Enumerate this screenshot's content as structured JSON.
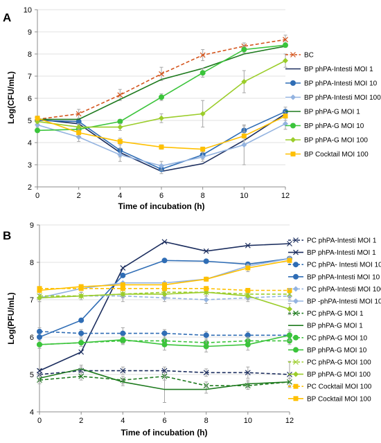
{
  "chart_data": [
    {
      "panel": "A",
      "type": "line",
      "xlabel": "Time of incubation (h)",
      "ylabel": "Log(CFU/mL)",
      "xlim": [
        0,
        12
      ],
      "ylim": [
        2,
        10
      ],
      "x_ticks": [
        "0",
        "2",
        "4",
        "6",
        "8",
        "10",
        "12"
      ],
      "y_ticks": [
        "2",
        "3",
        "4",
        "5",
        "6",
        "7",
        "8",
        "9",
        "10"
      ],
      "legend_position": "right",
      "x": [
        0,
        2,
        4,
        6,
        8,
        10,
        12
      ],
      "series": [
        {
          "name": "BC",
          "color": "#d4541c",
          "dash": "dashed",
          "marker": "x",
          "values": [
            5.05,
            5.3,
            6.15,
            7.1,
            7.95,
            8.35,
            8.65
          ],
          "error": [
            0.1,
            0.2,
            0.25,
            0.3,
            0.25,
            0.15,
            0.2
          ]
        },
        {
          "name": "BP phPA-Intesti MOI 1",
          "color": "#1b2d5e",
          "dash": "solid",
          "marker": "none",
          "values": [
            5.05,
            4.85,
            3.55,
            2.7,
            3.05,
            4.1,
            5.3
          ],
          "error": [
            0,
            0,
            0,
            0,
            0,
            0,
            0
          ]
        },
        {
          "name": "BP phPA-Intesti MOI 10",
          "color": "#2f6db5",
          "dash": "solid",
          "marker": "circle",
          "values": [
            5.0,
            4.95,
            3.65,
            2.8,
            3.45,
            4.55,
            5.4
          ],
          "error": [
            0.1,
            0.15,
            0.3,
            0.2,
            0.2,
            0.2,
            0.2
          ]
        },
        {
          "name": "BP phPA-Intesti MOI 100",
          "color": "#93b3e0",
          "dash": "solid",
          "marker": "diamond",
          "values": [
            4.8,
            4.25,
            3.45,
            2.95,
            3.35,
            3.9,
            4.85
          ],
          "error": [
            0.1,
            0.2,
            0.3,
            0.2,
            0.2,
            0.9,
            0.25
          ]
        },
        {
          "name": "BP phPA-G MOI 1",
          "color": "#1e7a1e",
          "dash": "solid",
          "marker": "none",
          "values": [
            5.05,
            5.05,
            5.95,
            6.85,
            7.35,
            8.0,
            8.35
          ],
          "error": [
            0,
            0,
            0,
            0,
            0,
            0,
            0
          ]
        },
        {
          "name": "BP phPA-G MOI 10",
          "color": "#3bc43b",
          "dash": "solid",
          "marker": "circle",
          "values": [
            4.55,
            4.6,
            4.95,
            6.05,
            7.15,
            8.2,
            8.4
          ],
          "error": [
            0.05,
            0.1,
            0.1,
            0.15,
            0.2,
            0.15,
            0.1
          ]
        },
        {
          "name": "BP phPA-G MOI 100",
          "color": "#9bcd2a",
          "dash": "solid",
          "marker": "diamond",
          "values": [
            4.95,
            4.7,
            4.7,
            5.1,
            5.3,
            6.75,
            7.7
          ],
          "error": [
            0.1,
            0.15,
            0.15,
            0.2,
            0.6,
            0.5,
            0.3
          ]
        },
        {
          "name": "BP Cocktail MOI 100",
          "color": "#ffc000",
          "dash": "solid",
          "marker": "square",
          "values": [
            5.1,
            4.45,
            4.05,
            3.8,
            3.7,
            4.3,
            5.2
          ],
          "error": [
            0.1,
            0.15,
            0.15,
            0.1,
            0.1,
            0.2,
            0.2
          ]
        }
      ]
    },
    {
      "panel": "B",
      "type": "line",
      "xlabel": "Time of incubation (h)",
      "ylabel": "Log(PFU/mL)",
      "xlim": [
        0,
        12
      ],
      "ylim": [
        4,
        9
      ],
      "x_ticks": [
        "0",
        "2",
        "4",
        "6",
        "8",
        "10",
        "12"
      ],
      "y_ticks": [
        "4",
        "5",
        "6",
        "7",
        "8",
        "9"
      ],
      "legend_position": "right",
      "x": [
        0,
        2,
        4,
        6,
        8,
        10,
        12
      ],
      "series": [
        {
          "name": "PC phPA-Intesti MOI 1",
          "color": "#1b2d5e",
          "dash": "dashed",
          "marker": "x",
          "values": [
            5.0,
            5.1,
            5.1,
            5.1,
            5.05,
            5.05,
            5.0
          ],
          "error": [
            0.15,
            0.1,
            0.1,
            0.1,
            0.1,
            0.15,
            0.35
          ]
        },
        {
          "name": "BP phPA-Intesti MOI 1",
          "color": "#1b2d5e",
          "dash": "solid",
          "marker": "x",
          "values": [
            5.1,
            5.6,
            7.85,
            8.55,
            8.3,
            8.45,
            8.5
          ],
          "error": [
            0,
            0,
            0,
            0,
            0,
            0,
            0
          ]
        },
        {
          "name": "PC phPA- Intesti MOI 10",
          "color": "#2f6db5",
          "dash": "dashed",
          "marker": "circle",
          "values": [
            6.15,
            6.1,
            6.1,
            6.1,
            6.05,
            6.05,
            6.05
          ],
          "error": [
            0.1,
            0.1,
            0.15,
            0.1,
            0.1,
            0.1,
            0.1
          ]
        },
        {
          "name": "BP phPA-Intesti MOI 10",
          "color": "#2f6db5",
          "dash": "solid",
          "marker": "circle",
          "values": [
            6.0,
            6.45,
            7.65,
            8.05,
            8.03,
            7.95,
            8.1
          ],
          "error": [
            0,
            0,
            0,
            0,
            0,
            0,
            0
          ]
        },
        {
          "name": "PC phPA-Intesti MOI 100",
          "color": "#93b3e0",
          "dash": "dashed",
          "marker": "diamond",
          "values": [
            7.05,
            7.1,
            7.1,
            7.05,
            7.0,
            7.05,
            7.1
          ],
          "error": [
            0.1,
            0.1,
            0.15,
            0.1,
            0.1,
            0.1,
            0.1
          ]
        },
        {
          "name": "BP -phPA-Intesti MOI 100",
          "color": "#93b3e0",
          "dash": "solid",
          "marker": "diamond",
          "values": [
            7.05,
            7.3,
            7.45,
            7.45,
            7.55,
            7.9,
            8.1
          ],
          "error": [
            0,
            0,
            0,
            0,
            0,
            0,
            0
          ]
        },
        {
          "name": "PC phPA-G MOI 1",
          "color": "#1e7a1e",
          "dash": "dashed",
          "marker": "x",
          "values": [
            4.85,
            4.95,
            4.85,
            4.95,
            4.7,
            4.7,
            4.8
          ],
          "error": [
            0.1,
            0.1,
            0.1,
            0.1,
            0.1,
            0.1,
            0.1
          ]
        },
        {
          "name": "BP phPA-G MOI 1",
          "color": "#1e7a1e",
          "dash": "solid",
          "marker": "none",
          "values": [
            4.9,
            5.15,
            4.8,
            4.6,
            4.6,
            4.75,
            4.8
          ],
          "error": [
            0.1,
            0.1,
            0.1,
            0.35,
            0.1,
            0.1,
            0.1
          ]
        },
        {
          "name": "PC phPA-G MOI 10",
          "color": "#3bc43b",
          "dash": "dashed",
          "marker": "circle",
          "values": [
            5.8,
            5.85,
            5.9,
            5.9,
            5.85,
            5.9,
            5.9
          ],
          "error": [
            0.1,
            0.1,
            0.1,
            0.1,
            0.1,
            0.1,
            0.1
          ]
        },
        {
          "name": "BP phPA-G MOI 10",
          "color": "#3bc43b",
          "dash": "solid",
          "marker": "circle",
          "values": [
            5.8,
            5.85,
            5.93,
            5.8,
            5.75,
            5.8,
            6.05
          ],
          "error": [
            0.1,
            0.1,
            0.1,
            0.15,
            0.15,
            0.15,
            0.15
          ]
        },
        {
          "name": "PC phPA-G MOI 100",
          "color": "#9bcd2a",
          "dash": "dashed",
          "marker": "x",
          "values": [
            7.1,
            7.1,
            7.15,
            7.2,
            7.2,
            7.15,
            7.15
          ],
          "error": [
            0.1,
            0.1,
            0.1,
            0.1,
            0.1,
            0.1,
            0.1
          ]
        },
        {
          "name": "BP phPA-G MOI 100",
          "color": "#9bcd2a",
          "dash": "solid",
          "marker": "diamond",
          "values": [
            7.05,
            7.1,
            7.15,
            7.15,
            7.2,
            7.1,
            6.75
          ],
          "error": [
            0.1,
            0.1,
            0.1,
            0.1,
            0.1,
            0.1,
            0.15
          ]
        },
        {
          "name": "PC Cocktail MOI 100",
          "color": "#ffc000",
          "dash": "dashed",
          "marker": "square",
          "values": [
            7.3,
            7.3,
            7.3,
            7.3,
            7.3,
            7.25,
            7.25
          ],
          "error": [
            0.05,
            0.05,
            0.05,
            0.05,
            0.05,
            0.05,
            0.05
          ]
        },
        {
          "name": "BP Cocktail MOI 100",
          "color": "#ffc000",
          "dash": "solid",
          "marker": "square",
          "values": [
            7.25,
            7.35,
            7.4,
            7.4,
            7.55,
            7.85,
            8.05
          ],
          "error": [
            0.05,
            0.05,
            0.05,
            0.05,
            0.05,
            0.1,
            0.1
          ]
        }
      ]
    }
  ]
}
